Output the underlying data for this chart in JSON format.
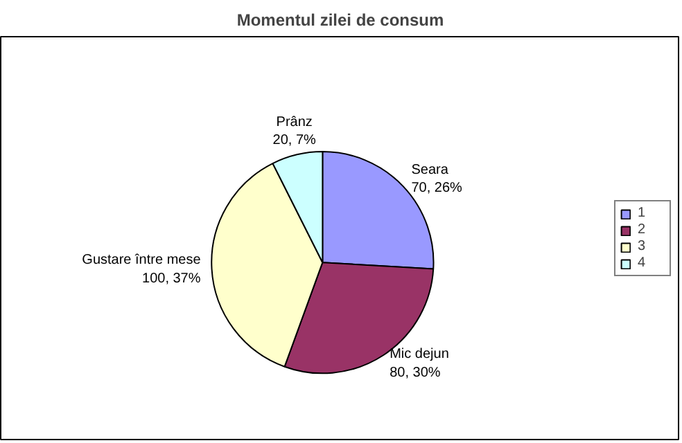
{
  "chart_data": {
    "type": "pie",
    "title": "Momentul zilei de consum",
    "categories": [
      "1",
      "2",
      "3",
      "4"
    ],
    "values": [
      70,
      80,
      100,
      20
    ],
    "colors": [
      "#9999ff",
      "#993366",
      "#ffffcc",
      "#ccffff"
    ],
    "value_labels": [
      "Seara\n70, 26%",
      "Mic dejun\n80, 30%",
      "Gustare între mese\n100, 37%",
      "Prânz\n20, 7%"
    ],
    "legend": "right"
  }
}
